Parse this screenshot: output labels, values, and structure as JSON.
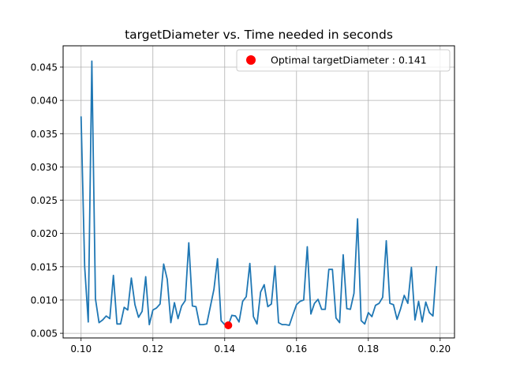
{
  "chart_data": {
    "type": "line",
    "title": "targetDiameter vs. Time needed in seconds",
    "xlabel": "",
    "ylabel": "",
    "xlim": [
      0.095,
      0.204
    ],
    "ylim": [
      0.0043,
      0.0482
    ],
    "grid": true,
    "legend": {
      "placement": "top-right",
      "entries": [
        "Optimal targetDiameter : 0.141"
      ]
    },
    "x_ticks": [
      {
        "value": 0.1,
        "label": "0.10"
      },
      {
        "value": 0.12,
        "label": "0.12"
      },
      {
        "value": 0.14,
        "label": "0.14"
      },
      {
        "value": 0.16,
        "label": "0.16"
      },
      {
        "value": 0.18,
        "label": "0.18"
      },
      {
        "value": 0.2,
        "label": "0.20"
      }
    ],
    "y_ticks": [
      {
        "value": 0.005,
        "label": "0.005"
      },
      {
        "value": 0.01,
        "label": "0.010"
      },
      {
        "value": 0.015,
        "label": "0.015"
      },
      {
        "value": 0.02,
        "label": "0.020"
      },
      {
        "value": 0.025,
        "label": "0.025"
      },
      {
        "value": 0.03,
        "label": "0.030"
      },
      {
        "value": 0.035,
        "label": "0.035"
      },
      {
        "value": 0.04,
        "label": "0.040"
      },
      {
        "value": 0.045,
        "label": "0.045"
      }
    ],
    "series": [
      {
        "color": "#1f77b4",
        "x": [
          0.1,
          0.101,
          0.102,
          0.103,
          0.104,
          0.105,
          0.106,
          0.107,
          0.108,
          0.109,
          0.11,
          0.111,
          0.112,
          0.113,
          0.114,
          0.115,
          0.116,
          0.117,
          0.118,
          0.119,
          0.12,
          0.121,
          0.122,
          0.123,
          0.124,
          0.125,
          0.126,
          0.127,
          0.128,
          0.129,
          0.13,
          0.131,
          0.132,
          0.133,
          0.134,
          0.135,
          0.136,
          0.137,
          0.138,
          0.139,
          0.14,
          0.141,
          0.142,
          0.143,
          0.144,
          0.145,
          0.146,
          0.147,
          0.148,
          0.149,
          0.15,
          0.151,
          0.152,
          0.153,
          0.154,
          0.155,
          0.156,
          0.157,
          0.158,
          0.159,
          0.16,
          0.161,
          0.162,
          0.163,
          0.164,
          0.165,
          0.166,
          0.167,
          0.168,
          0.169,
          0.17,
          0.171,
          0.172,
          0.173,
          0.174,
          0.175,
          0.176,
          0.177,
          0.178,
          0.179,
          0.18,
          0.181,
          0.182,
          0.183,
          0.184,
          0.185,
          0.186,
          0.187,
          0.188,
          0.189,
          0.19,
          0.191,
          0.192,
          0.193,
          0.194,
          0.195,
          0.196,
          0.197,
          0.198,
          0.199
        ],
        "y": [
          0.0376,
          0.015,
          0.0067,
          0.0459,
          0.0102,
          0.0066,
          0.007,
          0.0076,
          0.0072,
          0.0137,
          0.0064,
          0.0064,
          0.0089,
          0.0085,
          0.0133,
          0.0093,
          0.0074,
          0.0083,
          0.0135,
          0.0063,
          0.0085,
          0.0088,
          0.0094,
          0.0154,
          0.0131,
          0.0066,
          0.0096,
          0.0072,
          0.0091,
          0.0099,
          0.0186,
          0.0091,
          0.009,
          0.0063,
          0.0063,
          0.0064,
          0.009,
          0.0116,
          0.0162,
          0.0069,
          0.0063,
          0.0062,
          0.0077,
          0.0076,
          0.0067,
          0.0098,
          0.0105,
          0.0155,
          0.0075,
          0.0064,
          0.0112,
          0.0123,
          0.009,
          0.0094,
          0.0151,
          0.0066,
          0.0063,
          0.0063,
          0.0062,
          0.0078,
          0.0093,
          0.0098,
          0.01,
          0.018,
          0.0079,
          0.0095,
          0.0101,
          0.0086,
          0.0086,
          0.0146,
          0.0146,
          0.0073,
          0.0066,
          0.0168,
          0.0087,
          0.0086,
          0.011,
          0.0222,
          0.0069,
          0.0064,
          0.0081,
          0.0075,
          0.0092,
          0.0095,
          0.0104,
          0.0189,
          0.0095,
          0.0093,
          0.0071,
          0.0087,
          0.0107,
          0.0095,
          0.0149,
          0.007,
          0.0098,
          0.0067,
          0.0097,
          0.0081,
          0.0076,
          0.0151
        ]
      },
      {
        "name": "Optimal targetDiameter : 0.141",
        "color": "#ff0000",
        "marker": "circle",
        "x": [
          0.141
        ],
        "y": [
          0.0062
        ]
      }
    ]
  }
}
